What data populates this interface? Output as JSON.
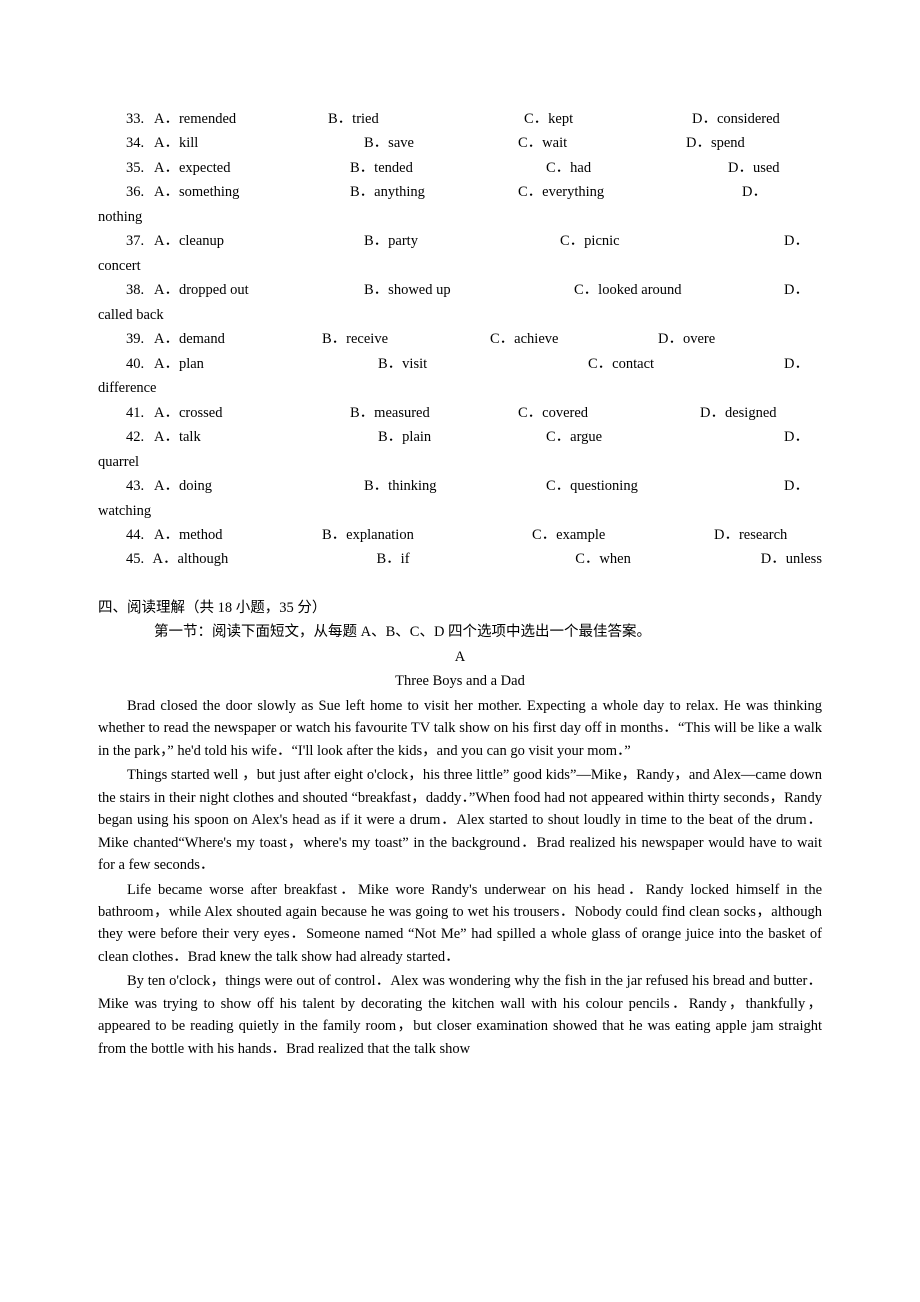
{
  "mc": [
    {
      "n": "33.",
      "a": "A．remended",
      "b": "B．tried",
      "c": "C．kept",
      "d": "D．considered",
      "aw": 174,
      "bw": 196,
      "cw": 168
    },
    {
      "n": "34.",
      "a": "A．kill",
      "b": "B．save",
      "c": "C．wait",
      "d": "D．spend",
      "aw": 210,
      "bw": 154,
      "cw": 168
    },
    {
      "n": "35.",
      "a": "A．expected",
      "b": "B．tended",
      "c": "C．had",
      "d": "D．used",
      "aw": 196,
      "bw": 196,
      "cw": 182
    },
    {
      "n": "36.",
      "a": "A．something",
      "b": "B．anything",
      "c": "C．everything",
      "d": "D．",
      "aw": 196,
      "bw": 168,
      "cw": 224,
      "wrap": "nothing"
    },
    {
      "n": "37.",
      "a": "A．cleanup",
      "b": "B．party",
      "c": "C．picnic",
      "d": "D．",
      "aw": 210,
      "bw": 196,
      "cw": 224,
      "wrap": "concert"
    },
    {
      "n": "38.",
      "a": "A．dropped out",
      "b": "B．showed up",
      "c": "C．looked around",
      "d": "D．",
      "aw": 210,
      "bw": 210,
      "cw": 210,
      "wrap": "called back"
    },
    {
      "n": "39.",
      "a": "A．demand",
      "b": "B．receive",
      "c": "C．achieve",
      "d": "D．overe",
      "aw": 168,
      "bw": 168,
      "cw": 168
    },
    {
      "n": "40.",
      "a": "A．plan",
      "b": "B．visit",
      "c": "C．contact",
      "d": "D．",
      "aw": 224,
      "bw": 210,
      "cw": 196,
      "wrap": "difference"
    },
    {
      "n": "41.",
      "a": "A．crossed",
      "b": "B．measured",
      "c": "C．covered",
      "d": "D．designed",
      "aw": 196,
      "bw": 168,
      "cw": 182
    },
    {
      "n": "42.",
      "a": "A．talk",
      "b": "B．plain",
      "c": "C．argue",
      "d": "D．",
      "aw": 224,
      "bw": 168,
      "cw": 238,
      "wrap": "quarrel"
    },
    {
      "n": "43.",
      "a": "A．doing",
      "b": "B．thinking",
      "c": "C．questioning",
      "d": "D．",
      "aw": 210,
      "bw": 182,
      "cw": 238,
      "wrap": "watching"
    },
    {
      "n": "44.",
      "a": "A．method",
      "b": "B．explanation",
      "c": "C．example",
      "d": "D．research",
      "aw": 168,
      "bw": 210,
      "cw": 182
    },
    {
      "n": "45.",
      "a": "A．although",
      "b": "B．if",
      "c": "C．when",
      "d": "D．unless",
      "aw": 224,
      "bw": 210,
      "cw": 196
    }
  ],
  "section": {
    "title": "四、阅读理解（共 18 小题，35 分）",
    "subtitle": "第一节：阅读下面短文，从每题 A、B、C、D 四个选项中选出一个最佳答案。",
    "label": "A",
    "passage_title": "Three Boys and a Dad"
  },
  "passage": [
    "Brad closed the door slowly as Sue left home to visit her mother. Expecting a whole day to relax. He was thinking whether to read the newspaper or watch his favourite TV talk show on his first day off in months．“This will be like a walk in the park，” he'd told his wife．“I'll look after the kids，and you can go visit your mom．”",
    "Things started well ，but just after eight o'clock，his three little” good kids”—Mike，Randy，and Alex—came down the stairs in their night clothes and shouted “breakfast，daddy．”When food had not appeared within thirty seconds，Randy began using his spoon on Alex's head as if it were a drum．Alex started to shout loudly in time to the beat of the drum．Mike chanted“Where's my toast，where's my toast” in the background．Brad realized his newspaper would have to wait for a few seconds．",
    "Life became worse after breakfast．Mike wore Randy's underwear on his head．Randy locked himself in the bathroom，while Alex shouted again because he was going to wet his trousers．Nobody could find clean socks，although they were before their very eyes．Someone named “Not Me” had spilled a whole glass of orange juice into the basket of clean clothes．Brad knew the talk show had already started．",
    "By ten o'clock，things were out of control．Alex was wondering why the fish in the jar refused his bread and butter．Mike was trying to show off his talent by decorating the kitchen wall with his colour pencils．Randy，thankfully，appeared to be reading quietly in the family room，but closer examination showed that he was eating apple jam straight from the bottle with his hands．Brad realized that the talk show"
  ]
}
